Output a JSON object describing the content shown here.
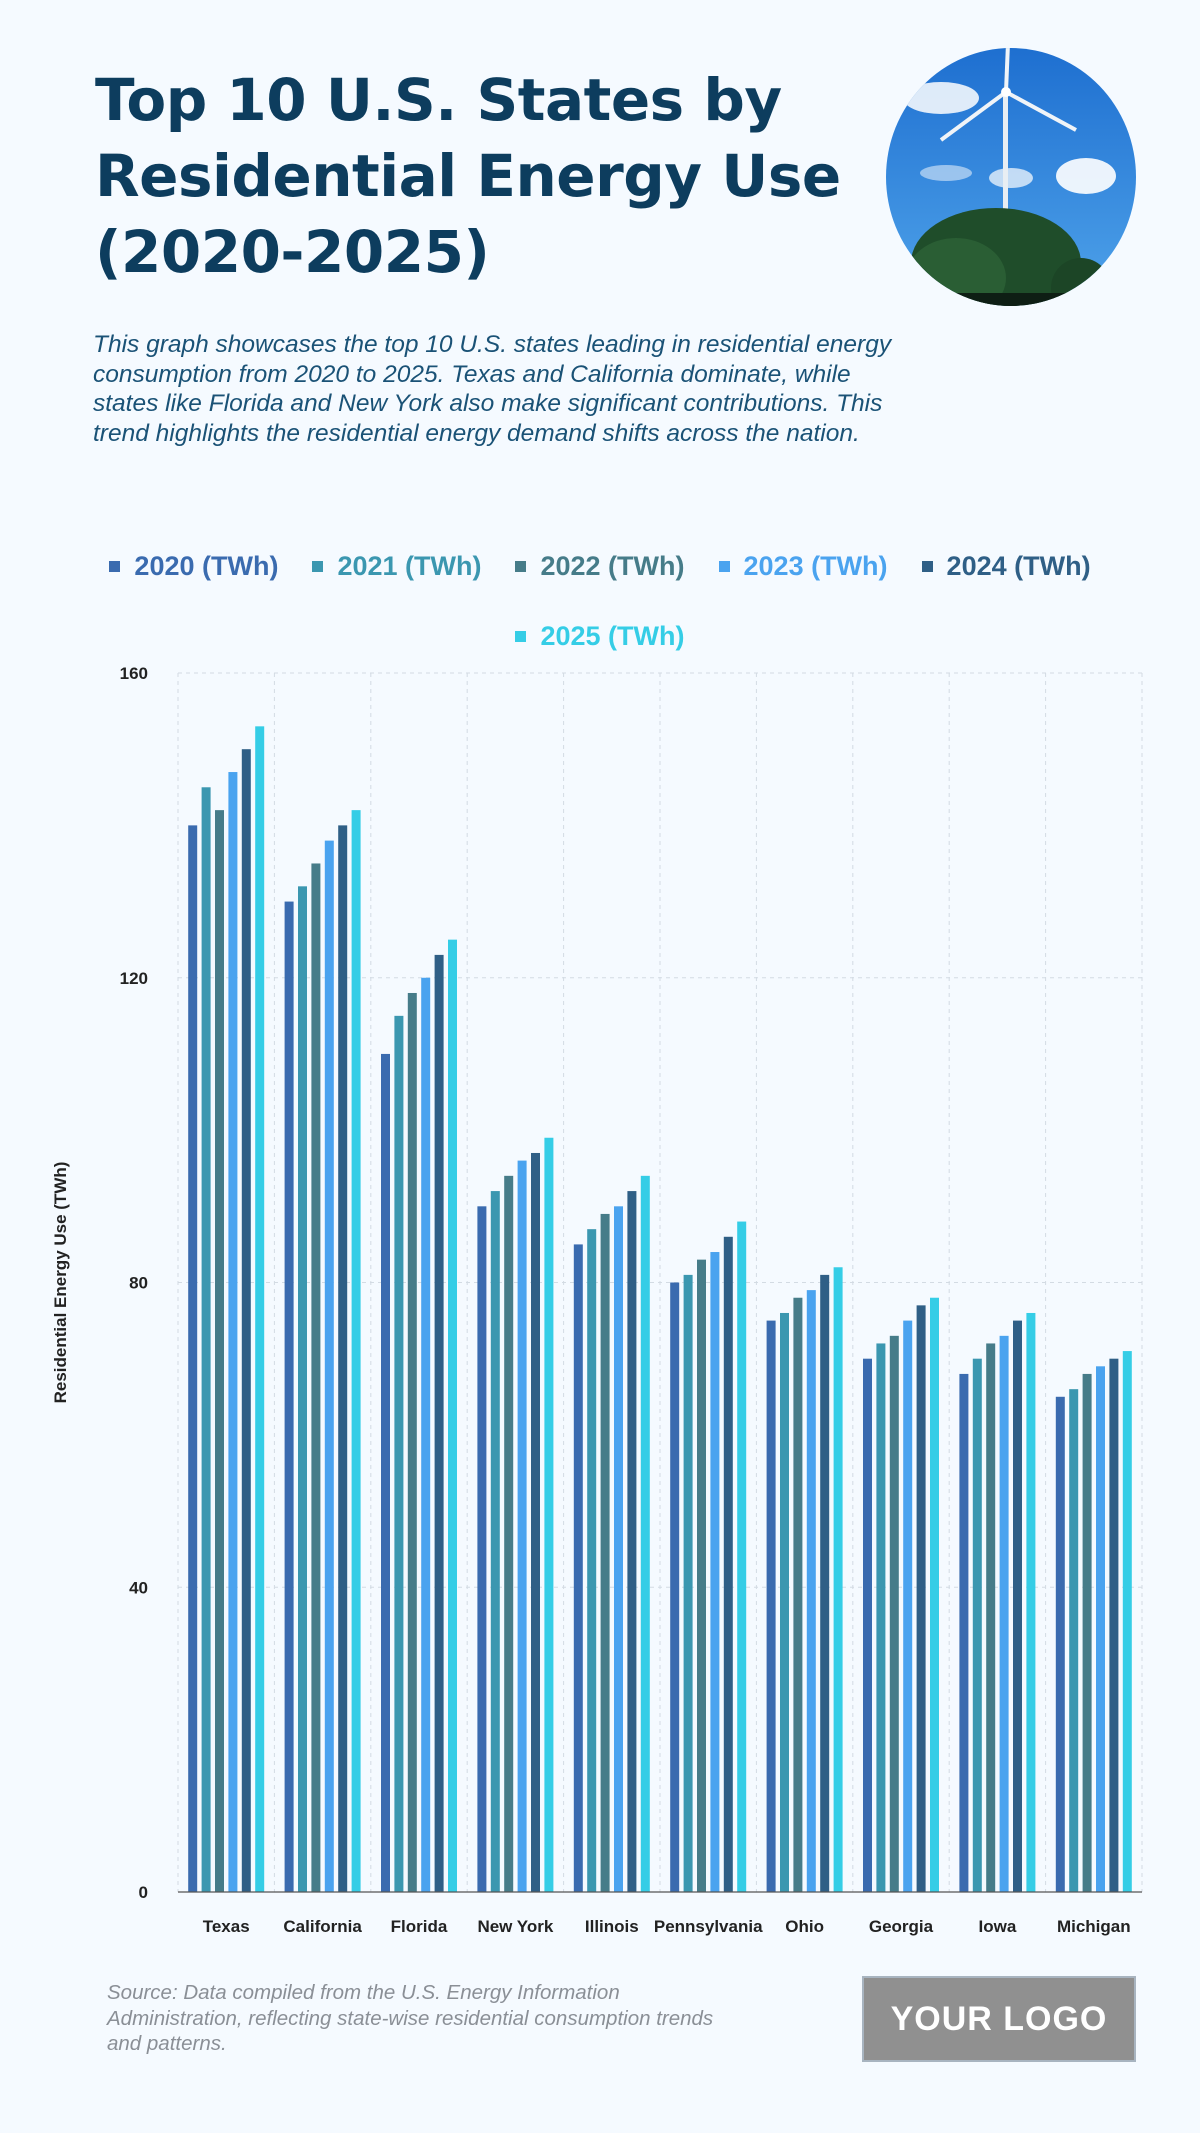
{
  "header": {
    "title": "Top 10 U.S. States by Residential Energy Use (2020-2025)",
    "subtitle": "This graph showcases the top 10 U.S. states leading in residential energy consumption from 2020 to 2025. Texas and California dominate, while states like Florida and New York also make significant contributions. This trend highlights the residential energy demand shifts across the nation.",
    "photo_icon": "wind-turbine-photo"
  },
  "footer": {
    "source": "Source: Data compiled from the U.S. Energy Information Administration, reflecting state-wise residential consumption trends and patterns.",
    "logo_text": "YOUR LOGO"
  },
  "chart_data": {
    "type": "bar",
    "categories": [
      "Texas",
      "California",
      "Florida",
      "New York",
      "Illinois",
      "Pennsylvania",
      "Ohio",
      "Georgia",
      "Iowa",
      "Michigan"
    ],
    "series": [
      {
        "name": "2020 (TWh)",
        "color": "#3a6baf",
        "values": [
          140,
          130,
          110,
          90,
          85,
          80,
          75,
          70,
          68,
          65
        ]
      },
      {
        "name": "2021 (TWh)",
        "color": "#3b97b0",
        "values": [
          145,
          132,
          115,
          92,
          87,
          81,
          76,
          72,
          70,
          66
        ]
      },
      {
        "name": "2022 (TWh)",
        "color": "#467c89",
        "values": [
          142,
          135,
          118,
          94,
          89,
          83,
          78,
          73,
          72,
          68
        ]
      },
      {
        "name": "2023 (TWh)",
        "color": "#4aa3ef",
        "values": [
          147,
          138,
          120,
          96,
          90,
          84,
          79,
          75,
          73,
          69
        ]
      },
      {
        "name": "2024 (TWh)",
        "color": "#2f5f86",
        "values": [
          150,
          140,
          123,
          97,
          92,
          86,
          81,
          77,
          75,
          70
        ]
      },
      {
        "name": "2025 (TWh)",
        "color": "#35cde6",
        "values": [
          153,
          142,
          125,
          99,
          94,
          88,
          82,
          78,
          76,
          71
        ]
      }
    ],
    "ylabel": "Residential Energy Use (TWh)",
    "xlabel": "",
    "ylim": [
      0,
      160
    ],
    "yticks": [
      0,
      40,
      80,
      120,
      160
    ],
    "grid": true,
    "legend_position": "top-center"
  }
}
